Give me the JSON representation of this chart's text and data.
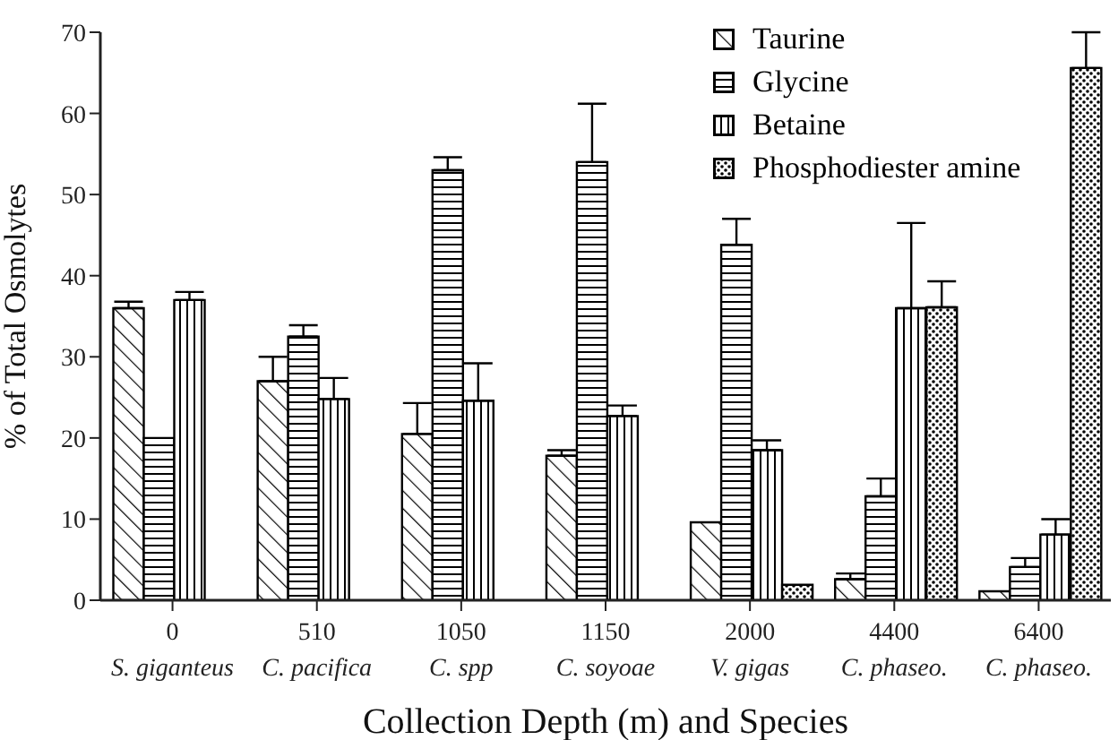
{
  "chart_data": {
    "type": "bar",
    "xlabel": "Collection Depth (m) and Species",
    "ylabel": "% of Total Osmolytes",
    "categories": [
      "0\nS. giganteus",
      "510\nC. pacifica",
      "1050\nC. spp",
      "1150\nC. soyoae",
      "2000\nV. gigas",
      "4400\nC. phaseo.",
      "6400\nC. phaseo."
    ],
    "series": [
      {
        "name": "Taurine",
        "color": "#000000",
        "values": [
          36,
          27,
          20.5,
          17.8,
          9.6,
          2.6,
          1.1
        ],
        "errors": [
          [
            36,
            36.8
          ],
          [
            27,
            30
          ],
          [
            20.5,
            24.3
          ],
          [
            17.8,
            18.5
          ],
          null,
          [
            2.6,
            3.3
          ],
          null
        ]
      },
      {
        "name": "Glycine",
        "color": "#000000",
        "values": [
          20,
          32.5,
          53,
          54,
          43.8,
          12.8,
          4.1
        ],
        "errors": [
          null,
          [
            32.5,
            33.9
          ],
          [
            53,
            54.6
          ],
          [
            54,
            61.2
          ],
          [
            43.8,
            47
          ],
          [
            12.8,
            15
          ],
          [
            4.1,
            5.2
          ]
        ]
      },
      {
        "name": "Betaine",
        "color": "#000000",
        "values": [
          37,
          24.8,
          24.6,
          22.7,
          18.5,
          36,
          8.1
        ],
        "errors": [
          [
            37,
            38
          ],
          [
            24.8,
            27.4
          ],
          [
            24.6,
            29.2
          ],
          [
            22.7,
            24
          ],
          [
            18.5,
            19.7
          ],
          [
            36,
            46.5
          ],
          [
            8.1,
            10
          ]
        ]
      },
      {
        "name": "Phosphodiester amine",
        "color": "#000000",
        "values": [
          null,
          null,
          null,
          null,
          1.9,
          36.1,
          65.6
        ],
        "errors": [
          null,
          null,
          null,
          null,
          null,
          [
            36.1,
            39.3
          ],
          [
            65.6,
            70
          ]
        ]
      }
    ],
    "ylim": [
      0,
      70
    ],
    "yticks": [
      0,
      10,
      20,
      30,
      40,
      50,
      60,
      70
    ],
    "grid": false,
    "legend": "top right"
  }
}
